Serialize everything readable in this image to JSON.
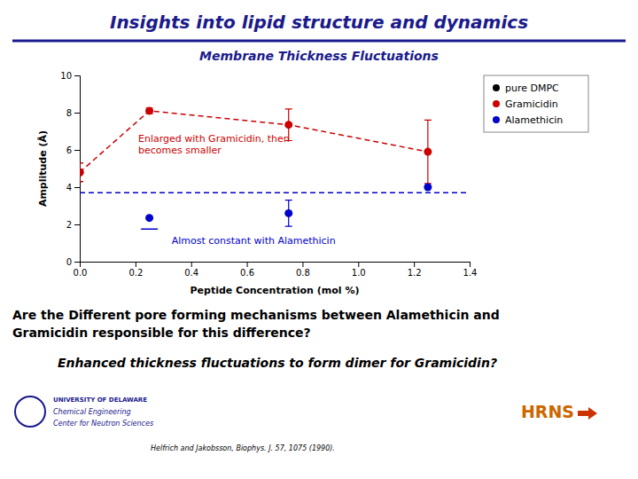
{
  "chart_data": {
    "type": "scatter",
    "title": "Insights into lipid structure and dynamics",
    "subtitle": "Membrane Thickness Fluctuations",
    "title_color": "#1a1a8c",
    "subtitle_color": "#1a1a8c",
    "xlabel": "Peptide Concentration (mol %)",
    "ylabel": "Amplitude (Å)",
    "xlim": [
      0.0,
      1.4
    ],
    "ylim": [
      0,
      10
    ],
    "xticks": [
      {
        "value": 0.0,
        "label": "0.0"
      },
      0.2,
      0.4,
      0.6,
      0.8,
      {
        "value": 1.0,
        "label": "1.0"
      },
      1.2,
      1.4
    ],
    "yticks": [
      0,
      2,
      4,
      6,
      8,
      10
    ],
    "grid": false,
    "legend": "upper right",
    "series": [
      {
        "name": "pure DMPC",
        "type": "scatter",
        "color": "#000000",
        "marker": "circle",
        "x": [
          0.0
        ],
        "values": [
          4.8
        ],
        "errors": [
          0.5
        ]
      },
      {
        "name": "Gramicidin",
        "type": "line",
        "color": "#cc0000",
        "marker": "circle",
        "line_style": "dashed",
        "x": [
          0.0,
          0.25,
          0.75,
          1.25
        ],
        "values": [
          4.8,
          8.1,
          7.35,
          5.9
        ],
        "errors": [
          0.5,
          0.15,
          0.85,
          1.7
        ]
      },
      {
        "name": "Alamethicin",
        "type": "scatter",
        "color": "#0000cc",
        "marker": "circle",
        "x": [
          0.25,
          0.75,
          1.25
        ],
        "values": [
          2.35,
          2.6,
          4.0
        ],
        "errors": [
          0.0,
          0.7,
          0.0
        ]
      }
    ],
    "reference_lines": [
      {
        "y": 3.7,
        "color": "#0000cc",
        "line_style": "dashed"
      }
    ],
    "segments": [
      {
        "x": [
          0.22,
          0.28
        ],
        "values": [
          1.75,
          1.75
        ],
        "color": "#0000cc",
        "line_style": "solid"
      }
    ],
    "annotations": [
      {
        "text": "Enlarged with Gramicidin, then\nbecomes smaller",
        "x": 0.21,
        "y": 6.3,
        "color": "#cc0000"
      },
      {
        "text": "Almost constant with Alamethicin",
        "x": 0.33,
        "y": 1.15,
        "color": "#0000cc"
      }
    ],
    "questions": [
      "Are the Different pore forming mechanisms between Alamethicin and\nGramicidin responsible for this difference?",
      "Enhanced thickness fluctuations to form dimer for Gramicidin?"
    ],
    "logo_left": {
      "texts": [
        "UNIVERSITY OF DELAWARE",
        "Chemical Engineering",
        "Center for Neutron Sciences"
      ],
      "color": "#1a1a8c"
    },
    "citation": "Helfrich and Jakobsson, Biophys. J. 57, 1075 (1990).",
    "logo_right": {
      "text": "HRNS",
      "color": "#cc6600",
      "arrow_color": "#cc3300"
    }
  }
}
